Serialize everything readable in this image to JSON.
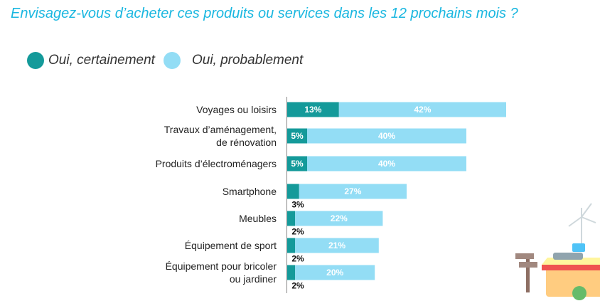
{
  "chart_data": {
    "type": "bar",
    "orientation": "horizontal",
    "stacked": true,
    "title": "Envisagez-vous d’acheter ces produits ou services dans les 12 prochains mois ?",
    "categories": [
      [
        "Voyages ou loisirs"
      ],
      [
        "Travaux d’aménagement,",
        "de rénovation"
      ],
      [
        "Produits d’électroménagers"
      ],
      [
        "Smartphone"
      ],
      [
        "Meubles"
      ],
      [
        "Équipement de sport"
      ],
      [
        "Équipement pour bricoler",
        "ou jardiner"
      ]
    ],
    "series": [
      {
        "name": "Oui, certainement",
        "values": [
          13,
          5,
          5,
          3,
          2,
          2,
          2
        ],
        "color": "#149a9a"
      },
      {
        "name": "Oui, probablement",
        "values": [
          42,
          40,
          40,
          27,
          22,
          21,
          20
        ],
        "color": "#93ddf5"
      }
    ],
    "value_suffix": "%",
    "legend_position": "top-left",
    "grid": false
  }
}
